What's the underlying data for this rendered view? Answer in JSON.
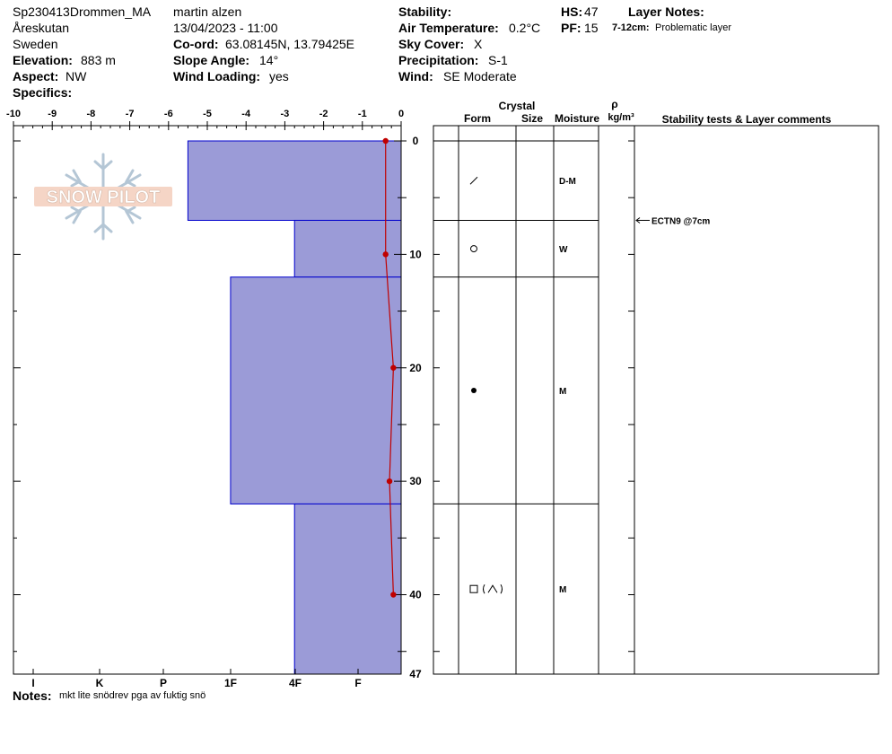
{
  "header": {
    "site_id": "Sp230413Drommen_MA",
    "location": "Åreskutan",
    "country": "Sweden",
    "elevation_label": "Elevation:",
    "elevation": "883 m",
    "aspect_label": "Aspect:",
    "aspect": "NW",
    "specifics_label": "Specifics:",
    "observer": "martin alzen",
    "datetime": "13/04/2023 - 11:00",
    "coord_label": "Co-ord:",
    "coord": "63.08145N, 13.79425E",
    "slope_label": "Slope Angle:",
    "slope": "14°",
    "wind_loading_label": "Wind Loading:",
    "wind_loading": "yes",
    "stability_label": "Stability:",
    "air_temp_label": "Air Temperature:",
    "air_temp": "0.2°C",
    "sky_label": "Sky Cover:",
    "sky": "X",
    "precip_label": "Precipitation:",
    "precip": "S-1",
    "wind_label": "Wind:",
    "wind": "SE Moderate",
    "hs_label": "HS:",
    "hs": "47",
    "pf_label": "PF:",
    "pf": "15",
    "layer_notes_label": "Layer Notes:",
    "layer_note_range": "7-12cm:",
    "layer_note_text": "Problematic layer"
  },
  "logo": {
    "text": "SNOW PILOT"
  },
  "notes": {
    "label": "Notes:",
    "text": "mkt lite snödrev pga av fuktig snö"
  },
  "table": {
    "crystal_label": "Crystal",
    "form_label": "Form",
    "size_label": "Size",
    "moisture_label": "Moisture",
    "rho_label": "ρ",
    "density_unit": "kg/m³",
    "comments_label": "Stability tests & Layer comments"
  },
  "chart_data": {
    "type": "snow-profile",
    "temp_axis": {
      "ticks": [
        -10,
        -9,
        -8,
        -7,
        -6,
        -5,
        -4,
        -3,
        -2,
        -1,
        0
      ],
      "range": [
        -10,
        0
      ]
    },
    "hardness_axis": {
      "labels": [
        "I",
        "K",
        "P",
        "1F",
        "4F",
        "F"
      ]
    },
    "depth_axis": {
      "ticks": [
        0,
        10,
        20,
        30,
        40,
        47
      ],
      "range": [
        0,
        47
      ]
    },
    "layers": [
      {
        "top": 0,
        "bottom": 7,
        "hardness": -5.5,
        "form": "slash",
        "moisture": "D-M"
      },
      {
        "top": 7,
        "bottom": 12,
        "hardness": -2.75,
        "form": "circle",
        "moisture": "W"
      },
      {
        "top": 12,
        "bottom": 32,
        "hardness": -4.4,
        "form": "dot",
        "moisture": "M"
      },
      {
        "top": 32,
        "bottom": 47,
        "hardness": -2.75,
        "form": "square-caret",
        "moisture": "M"
      }
    ],
    "temperature_profile": [
      {
        "depth": 0,
        "temp": -0.4
      },
      {
        "depth": 10,
        "temp": -0.4
      },
      {
        "depth": 20,
        "temp": -0.2
      },
      {
        "depth": 30,
        "temp": -0.3
      },
      {
        "depth": 40,
        "temp": -0.2
      }
    ],
    "stability_tests": [
      {
        "depth": 7,
        "label": "ECTN9 @7cm"
      }
    ],
    "colors": {
      "layer_fill": "#9b9bd7",
      "layer_stroke": "#0000cc",
      "temp_line": "#c00000"
    }
  }
}
